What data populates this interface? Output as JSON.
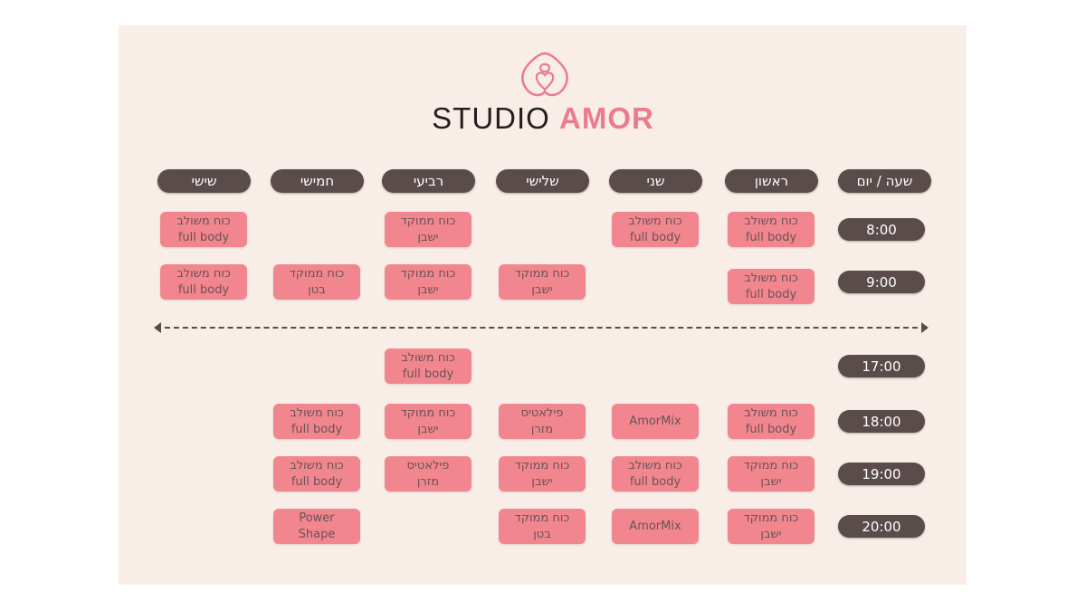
{
  "brand": {
    "name_light": "STUDIO",
    "name_bold": "AMOR",
    "accent_color": "#ec7b8c",
    "logo_icon": "heart-lock-icon"
  },
  "schedule": {
    "header": {
      "time_day": "שעה / יום"
    },
    "days": [
      "ראשון",
      "שני",
      "שלישי",
      "רביעי",
      "חמישי",
      "שישי"
    ],
    "rows": [
      {
        "time": "8:00",
        "cells": [
          [
            "כוח משולב",
            "full body"
          ],
          [
            "כוח משולב",
            "full body"
          ],
          null,
          [
            "כוח ממוקד",
            "ישבן"
          ],
          null,
          [
            "כוח משולב",
            "full body"
          ]
        ]
      },
      {
        "time": "9:00",
        "cells": [
          [
            "כוח משולב",
            "full body"
          ],
          null,
          [
            "כוח ממוקד",
            "ישבן"
          ],
          [
            "כוח ממוקד",
            "ישבן"
          ],
          [
            "כוח ממוקד",
            "בטן"
          ],
          [
            "כוח משולב",
            "full body"
          ]
        ]
      },
      {
        "time": "17:00",
        "cells": [
          null,
          null,
          null,
          [
            "כוח משולב",
            "full body"
          ],
          null,
          null
        ]
      },
      {
        "time": "18:00",
        "cells": [
          [
            "כוח משולב",
            "full body"
          ],
          [
            "AmorMix"
          ],
          [
            "פילאטיס",
            "מזרן"
          ],
          [
            "כוח ממוקד",
            "ישבן"
          ],
          [
            "כוח משולב",
            "full body"
          ],
          null
        ]
      },
      {
        "time": "19:00",
        "cells": [
          [
            "כוח ממוקד",
            "ישבן"
          ],
          [
            "כוח משולב",
            "full body"
          ],
          [
            "כוח ממוקד",
            "ישבן"
          ],
          [
            "פילאטיס",
            "מזרן"
          ],
          [
            "כוח משולב",
            "full body"
          ],
          null
        ]
      },
      {
        "time": "20:00",
        "cells": [
          [
            "כוח ממוקד",
            "ישבן"
          ],
          [
            "AmorMix"
          ],
          [
            "כוח ממוקד",
            "בטן"
          ],
          null,
          [
            "Power",
            "Shape"
          ],
          null
        ]
      }
    ]
  }
}
